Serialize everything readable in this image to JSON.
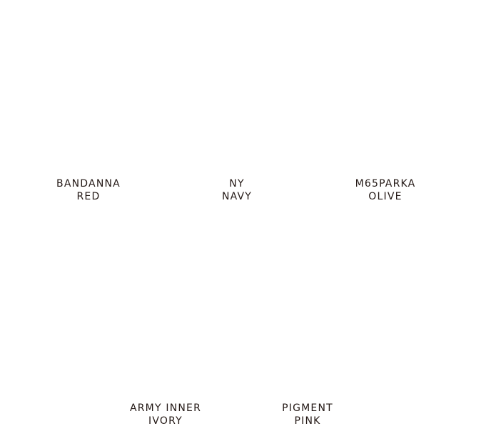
{
  "colors": [
    {
      "line1": "BANDANNA",
      "line2": "RED"
    },
    {
      "line1": "NY",
      "line2": "NAVY"
    },
    {
      "line1": "M65PARKA",
      "line2": "OLIVE"
    },
    {
      "line1": "ARMY INNER",
      "line2": "IVORY"
    },
    {
      "line1": "PIGMENT",
      "line2": "PINK"
    }
  ],
  "text_color": "#231815"
}
